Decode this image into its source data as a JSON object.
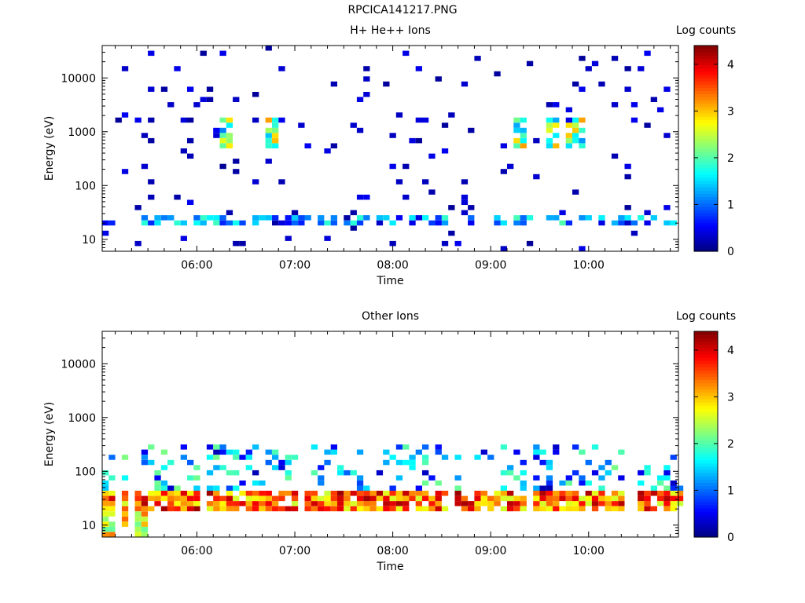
{
  "title": "RPCICA141217.PNG",
  "chart_data": [
    {
      "type": "heatmap",
      "title": "H+ He++ Ions",
      "xlabel": "Time",
      "ylabel": "Energy (eV)",
      "x_range": [
        "05:02",
        "10:55"
      ],
      "x_ticks": [
        "06:00",
        "07:00",
        "08:00",
        "09:00",
        "10:00"
      ],
      "y_scale": "log",
      "y_range": [
        6,
        40000
      ],
      "y_ticks": [
        "10",
        "100",
        "1000",
        "10000"
      ],
      "colorbar": {
        "label": "Log counts",
        "range": [
          0,
          4.4
        ],
        "ticks": [
          "0",
          "1",
          "2",
          "3",
          "4"
        ]
      },
      "features": [
        {
          "energy_ev": [
            20,
            30
          ],
          "description": "persistent low-energy band",
          "log_counts": [
            0.4,
            2.0
          ]
        },
        {
          "energy_ev": [
            500,
            1800
          ],
          "description": "intermittent keV ion enhancements near 06:15, 06:45, 09:15, 09:35, 09:50",
          "log_counts": [
            1.0,
            3.2
          ]
        },
        {
          "energy_ev": [
            6,
            40000
          ],
          "description": "sparse single-count noise",
          "log_counts": [
            0.1,
            0.5
          ]
        }
      ]
    },
    {
      "type": "heatmap",
      "title": "Other Ions",
      "xlabel": "Time",
      "ylabel": "Energy (eV)",
      "x_range": [
        "05:02",
        "10:55"
      ],
      "x_ticks": [
        "06:00",
        "07:00",
        "08:00",
        "09:00",
        "10:00"
      ],
      "y_scale": "log",
      "y_range": [
        6,
        40000
      ],
      "y_ticks": [
        "10",
        "100",
        "1000",
        "10000"
      ],
      "colorbar": {
        "label": "Log counts",
        "range": [
          0,
          4.4
        ],
        "ticks": [
          "0",
          "1",
          "2",
          "3",
          "4"
        ]
      },
      "features": [
        {
          "energy_ev": [
            20,
            40
          ],
          "description": "intense heavy-ion band throughout the interval",
          "log_counts": [
            2.5,
            4.3
          ]
        },
        {
          "energy_ev": [
            6,
            30
          ],
          "description": "high counts at start of interval",
          "log_counts": [
            2.0,
            3.5
          ]
        },
        {
          "energy_ev": [
            40,
            300
          ],
          "description": "scattered moderate counts above main band",
          "log_counts": [
            0.2,
            2.2
          ]
        }
      ]
    }
  ]
}
